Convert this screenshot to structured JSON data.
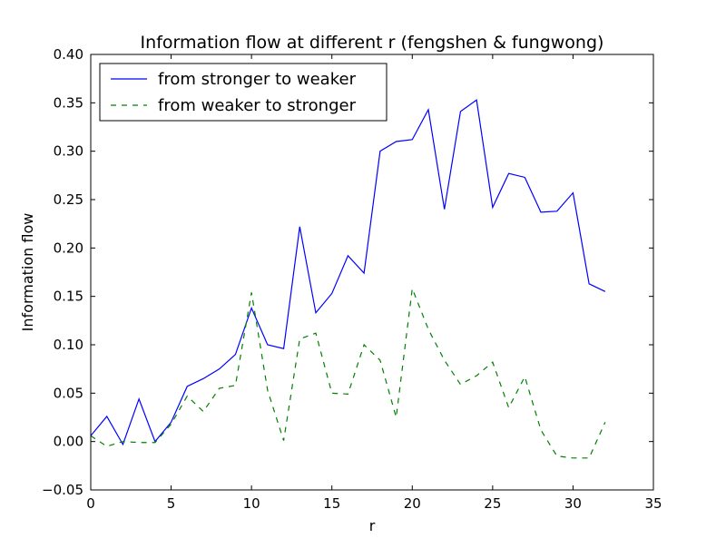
{
  "chart_data": {
    "type": "line",
    "title": "Information flow at different r (fengshen & fungwong)",
    "xlabel": "r",
    "ylabel": "Information flow",
    "xlim": [
      0,
      35
    ],
    "ylim": [
      -0.05,
      0.4
    ],
    "x_ticks": [
      0,
      5,
      10,
      15,
      20,
      25,
      30,
      35
    ],
    "x_tick_labels": [
      "0",
      "5",
      "10",
      "15",
      "20",
      "25",
      "30",
      "35"
    ],
    "y_ticks": [
      -0.05,
      0.0,
      0.05,
      0.1,
      0.15,
      0.2,
      0.25,
      0.3,
      0.35,
      0.4
    ],
    "y_tick_labels": [
      "−0.05",
      "0.00",
      "0.05",
      "0.10",
      "0.15",
      "0.20",
      "0.25",
      "0.30",
      "0.35",
      "0.40"
    ],
    "grid": false,
    "legend_position": "top-left",
    "x": [
      0,
      1,
      2,
      3,
      4,
      5,
      6,
      7,
      8,
      9,
      10,
      11,
      12,
      13,
      14,
      15,
      16,
      17,
      18,
      19,
      20,
      21,
      22,
      23,
      24,
      25,
      26,
      27,
      28,
      29,
      30,
      31,
      32
    ],
    "series": [
      {
        "name": "from stronger to weaker",
        "color": "#0000ff",
        "line_style": "solid",
        "values": [
          0.006,
          0.026,
          -0.003,
          0.044,
          0.0,
          0.02,
          0.057,
          0.065,
          0.075,
          0.09,
          0.138,
          0.1,
          0.096,
          0.222,
          0.133,
          0.153,
          0.192,
          0.174,
          0.3,
          0.31,
          0.312,
          0.343,
          0.24,
          0.341,
          0.353,
          0.242,
          0.277,
          0.273,
          0.237,
          0.238,
          0.257,
          0.163,
          0.155
        ]
      },
      {
        "name": "from weaker to stronger",
        "color": "#008000",
        "line_style": "dashed",
        "values": [
          0.006,
          -0.005,
          0.0,
          -0.001,
          -0.001,
          0.018,
          0.047,
          0.031,
          0.055,
          0.058,
          0.154,
          0.053,
          0.001,
          0.106,
          0.112,
          0.05,
          0.049,
          0.1,
          0.084,
          0.025,
          0.158,
          0.116,
          0.084,
          0.059,
          0.068,
          0.082,
          0.035,
          0.067,
          0.012,
          -0.015,
          -0.017,
          -0.017,
          0.02
        ]
      }
    ]
  }
}
